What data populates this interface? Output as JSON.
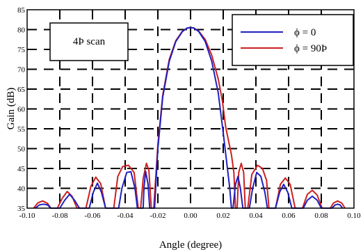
{
  "chart_data": {
    "type": "line",
    "title": "",
    "xlabel": "Angle (degree)",
    "ylabel": "Gain (dB)",
    "xlim": [
      -0.1,
      0.1
    ],
    "ylim": [
      35,
      85
    ],
    "x_ticks": [
      "-0.10",
      "-0.08",
      "-0.06",
      "-0.04",
      "-0.02",
      "0.00",
      "0.02",
      "0.04",
      "0.06",
      "0.08",
      "0.10"
    ],
    "y_ticks": [
      "35",
      "40",
      "45",
      "50",
      "55",
      "60",
      "65",
      "70",
      "75",
      "80",
      "85"
    ],
    "grid": "dashed",
    "annotation": "4Þ scan",
    "legend_position": "top-right",
    "series": [
      {
        "name": "ϕ = 0",
        "color": "#1f1fbf",
        "points": [
          [
            -0.095,
            35
          ],
          [
            -0.0925,
            35.8
          ],
          [
            -0.09,
            36
          ],
          [
            -0.0875,
            35.8
          ],
          [
            -0.0855,
            35
          ],
          [
            -0.08,
            35
          ],
          [
            -0.077,
            37
          ],
          [
            -0.074,
            38.5
          ],
          [
            -0.071,
            37
          ],
          [
            -0.068,
            35
          ],
          [
            -0.062,
            35
          ],
          [
            -0.0595,
            39
          ],
          [
            -0.057,
            41.3
          ],
          [
            -0.0545,
            39
          ],
          [
            -0.052,
            35
          ],
          [
            -0.044,
            35
          ],
          [
            -0.042,
            40
          ],
          [
            -0.039,
            44
          ],
          [
            -0.0365,
            44.2
          ],
          [
            -0.034,
            40
          ],
          [
            -0.0325,
            35
          ],
          [
            -0.029,
            35
          ],
          [
            -0.0285,
            40
          ],
          [
            -0.0275,
            44.3
          ],
          [
            -0.026,
            41
          ],
          [
            -0.025,
            35
          ],
          [
            -0.022,
            35
          ],
          [
            -0.02,
            50
          ],
          [
            -0.017,
            63
          ],
          [
            -0.013,
            72
          ],
          [
            -0.009,
            77
          ],
          [
            -0.005,
            79.5
          ],
          [
            -0.002,
            80.4
          ],
          [
            0.0,
            80.5
          ],
          [
            0.002,
            80.4
          ],
          [
            0.005,
            79.5
          ],
          [
            0.009,
            77
          ],
          [
            0.013,
            72
          ],
          [
            0.017,
            64
          ],
          [
            0.02,
            54
          ],
          [
            0.022,
            47
          ],
          [
            0.024,
            40
          ],
          [
            0.025,
            35
          ],
          [
            0.026,
            35
          ],
          [
            0.0275,
            41
          ],
          [
            0.029,
            43
          ],
          [
            0.0305,
            40
          ],
          [
            0.032,
            35
          ],
          [
            0.036,
            35
          ],
          [
            0.038,
            40
          ],
          [
            0.0405,
            44
          ],
          [
            0.043,
            43
          ],
          [
            0.0455,
            39
          ],
          [
            0.047,
            35
          ],
          [
            0.052,
            35
          ],
          [
            0.0545,
            39
          ],
          [
            0.057,
            41
          ],
          [
            0.0595,
            39
          ],
          [
            0.062,
            35
          ],
          [
            0.069,
            35
          ],
          [
            0.0715,
            37
          ],
          [
            0.0745,
            38
          ],
          [
            0.0775,
            37
          ],
          [
            0.08,
            35
          ],
          [
            0.0865,
            35
          ],
          [
            0.0885,
            35.8
          ],
          [
            0.09,
            36
          ],
          [
            0.0915,
            35.8
          ],
          [
            0.093,
            35
          ]
        ]
      },
      {
        "name": "ϕ = 90Þ",
        "color": "#cc1f1f",
        "points": [
          [
            -0.096,
            35
          ],
          [
            -0.0935,
            36.3
          ],
          [
            -0.0905,
            36.8
          ],
          [
            -0.0875,
            36.2
          ],
          [
            -0.0855,
            35
          ],
          [
            -0.0815,
            35
          ],
          [
            -0.0785,
            37.5
          ],
          [
            -0.0755,
            39.2
          ],
          [
            -0.0725,
            38
          ],
          [
            -0.0695,
            35
          ],
          [
            -0.064,
            35
          ],
          [
            -0.061,
            40.5
          ],
          [
            -0.058,
            42.8
          ],
          [
            -0.055,
            41.2
          ],
          [
            -0.052,
            35
          ],
          [
            -0.047,
            35
          ],
          [
            -0.0445,
            43
          ],
          [
            -0.0415,
            45.5
          ],
          [
            -0.038,
            45.8
          ],
          [
            -0.0345,
            44
          ],
          [
            -0.032,
            35
          ],
          [
            -0.0305,
            35
          ],
          [
            -0.029,
            42.5
          ],
          [
            -0.027,
            46.3
          ],
          [
            -0.0255,
            44.5
          ],
          [
            -0.024,
            35
          ],
          [
            -0.0225,
            35
          ],
          [
            -0.02,
            51
          ],
          [
            -0.017,
            63.5
          ],
          [
            -0.013,
            72.5
          ],
          [
            -0.009,
            77.2
          ],
          [
            -0.005,
            79.6
          ],
          [
            -0.002,
            80.4
          ],
          [
            0.0,
            80.5
          ],
          [
            0.002,
            80.4
          ],
          [
            0.005,
            79.6
          ],
          [
            0.009,
            77.5
          ],
          [
            0.013,
            73.5
          ],
          [
            0.017,
            67.5
          ],
          [
            0.0195,
            62
          ],
          [
            0.0215,
            55.5
          ],
          [
            0.0235,
            51.5
          ],
          [
            0.025,
            48.5
          ],
          [
            0.0265,
            44
          ],
          [
            0.0275,
            35
          ],
          [
            0.0285,
            35
          ],
          [
            0.0295,
            44
          ],
          [
            0.031,
            46.3
          ],
          [
            0.0325,
            44
          ],
          [
            0.0335,
            35
          ],
          [
            0.035,
            35
          ],
          [
            0.0375,
            43.5
          ],
          [
            0.041,
            45.8
          ],
          [
            0.044,
            45
          ],
          [
            0.0465,
            42
          ],
          [
            0.048,
            35
          ],
          [
            0.052,
            35
          ],
          [
            0.055,
            41
          ],
          [
            0.058,
            42.6
          ],
          [
            0.061,
            41
          ],
          [
            0.064,
            35
          ],
          [
            0.0685,
            35
          ],
          [
            0.0715,
            38.5
          ],
          [
            0.0745,
            39.5
          ],
          [
            0.0775,
            38.3
          ],
          [
            0.0805,
            35
          ],
          [
            0.0855,
            35
          ],
          [
            0.0875,
            36.3
          ],
          [
            0.09,
            36.8
          ],
          [
            0.0925,
            36.3
          ],
          [
            0.0945,
            35
          ]
        ]
      }
    ]
  }
}
